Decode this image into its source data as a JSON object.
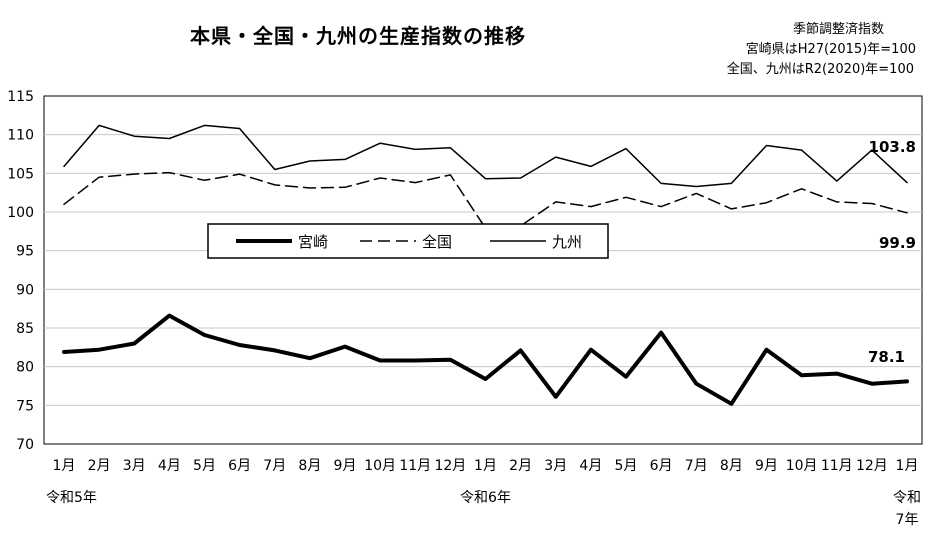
{
  "chart_data": {
    "type": "line",
    "title": "本県・全国・九州の生産指数の推移",
    "notes": [
      "季節調整済指数",
      "宮崎県はH27(2015)年=100",
      "全国、九州はR2(2020)年=100"
    ],
    "x": [
      "1月",
      "2月",
      "3月",
      "4月",
      "5月",
      "6月",
      "7月",
      "8月",
      "9月",
      "10月",
      "11月",
      "12月",
      "1月",
      "2月",
      "3月",
      "4月",
      "5月",
      "6月",
      "7月",
      "8月",
      "9月",
      "10月",
      "11月",
      "12月",
      "1月"
    ],
    "era_labels": [
      {
        "index": 0,
        "text": "令和5年"
      },
      {
        "index": 12,
        "text": "令和6年"
      },
      {
        "index": 24,
        "text": "令和7年"
      }
    ],
    "ylim": [
      70,
      115
    ],
    "yticks": [
      70,
      75,
      80,
      85,
      90,
      95,
      100,
      105,
      110,
      115
    ],
    "grid": true,
    "legend_position": "middle-left",
    "series": [
      {
        "name": "宮崎",
        "style": "thick-solid",
        "color": "#000000",
        "values": [
          81.9,
          82.2,
          83.0,
          86.6,
          84.1,
          82.8,
          82.1,
          81.1,
          82.6,
          80.8,
          80.8,
          80.9,
          78.4,
          82.1,
          76.1,
          82.2,
          78.7,
          84.4,
          77.8,
          75.2,
          82.2,
          78.9,
          79.1,
          77.8,
          78.1
        ]
      },
      {
        "name": "全国",
        "style": "dashed",
        "color": "#000000",
        "values": [
          101.0,
          104.5,
          104.9,
          105.1,
          104.1,
          104.9,
          103.5,
          103.1,
          103.2,
          104.4,
          103.8,
          104.8,
          97.9,
          98.2,
          101.3,
          100.7,
          101.9,
          100.7,
          102.4,
          100.4,
          101.2,
          103.0,
          101.3,
          101.1,
          99.9
        ]
      },
      {
        "name": "九州",
        "style": "thin-solid",
        "color": "#000000",
        "values": [
          105.9,
          111.2,
          109.8,
          109.5,
          111.2,
          110.8,
          105.5,
          106.6,
          106.8,
          108.9,
          108.1,
          108.3,
          104.3,
          104.4,
          107.1,
          105.9,
          108.2,
          103.7,
          103.3,
          103.7,
          108.6,
          108.0,
          104.0,
          108.0,
          103.8
        ]
      }
    ],
    "end_labels": [
      {
        "series": "九州",
        "text": "103.8"
      },
      {
        "series": "全国",
        "text": "99.9"
      },
      {
        "series": "宮崎",
        "text": "78.1"
      }
    ]
  }
}
